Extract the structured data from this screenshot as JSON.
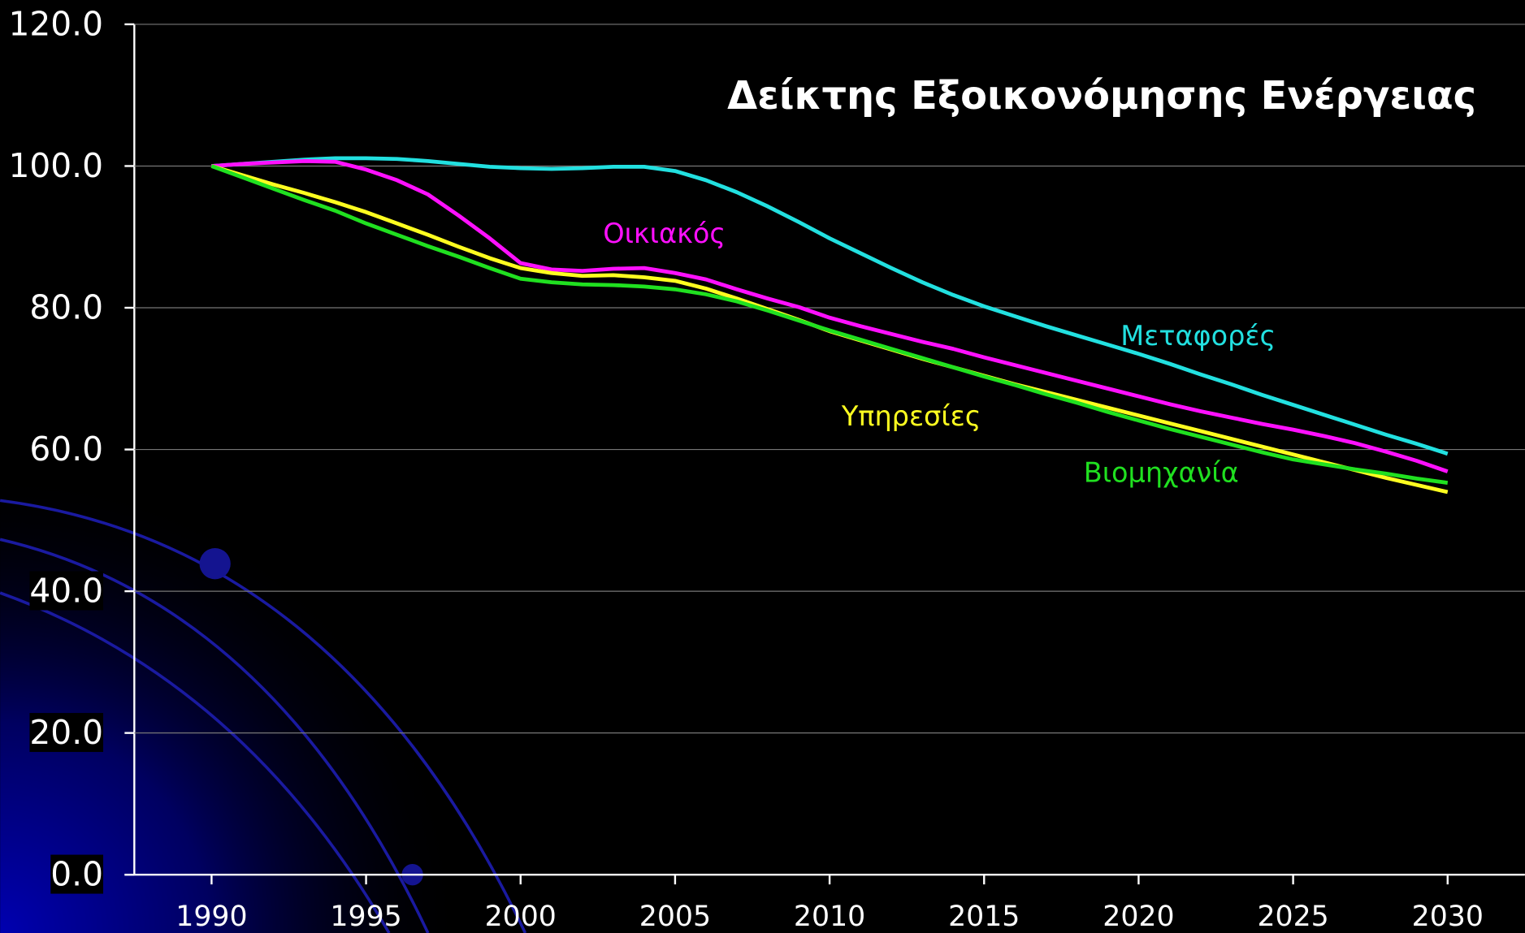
{
  "chart_data": {
    "type": "line",
    "title": "Δείκτης Εξοικονόμησης Ενέργειας",
    "x": [
      1990,
      1991,
      1992,
      1993,
      1994,
      1995,
      1996,
      1997,
      1998,
      1999,
      2000,
      2001,
      2002,
      2003,
      2004,
      2005,
      2006,
      2007,
      2008,
      2009,
      2010,
      2011,
      2012,
      2013,
      2014,
      2015,
      2016,
      2017,
      2018,
      2019,
      2020,
      2021,
      2022,
      2023,
      2024,
      2025,
      2026,
      2027,
      2028,
      2029,
      2030
    ],
    "xlim": [
      1987.5,
      2032.5
    ],
    "xticks": [
      1990,
      1995,
      2000,
      2005,
      2010,
      2015,
      2020,
      2025,
      2030
    ],
    "ylim": [
      0,
      120
    ],
    "yticks": [
      {
        "value": 0,
        "label": "0.0"
      },
      {
        "value": 20,
        "label": "20.0"
      },
      {
        "value": 40,
        "label": "40.0"
      },
      {
        "value": 60,
        "label": "60.0"
      },
      {
        "value": 80,
        "label": "80.0"
      },
      {
        "value": 100,
        "label": "100.0"
      },
      {
        "value": 120,
        "label": "120.0"
      }
    ],
    "grid": true,
    "series": [
      {
        "name": "Μεταφορές",
        "color": "#22e0e0",
        "values": [
          100,
          100.3,
          100.6,
          100.9,
          101.1,
          101.1,
          101.0,
          100.7,
          100.3,
          99.9,
          99.7,
          99.6,
          99.7,
          99.9,
          99.9,
          99.3,
          98.0,
          96.3,
          94.3,
          92.1,
          89.8,
          87.7,
          85.6,
          83.6,
          81.8,
          80.2,
          78.8,
          77.4,
          76.1,
          74.8,
          73.5,
          72.1,
          70.6,
          69.2,
          67.7,
          66.3,
          64.9,
          63.5,
          62.1,
          60.8,
          59.4
        ]
      },
      {
        "name": "Οικιακός",
        "color": "#ff10ff",
        "values": [
          100,
          100.3,
          100.5,
          100.7,
          100.6,
          99.5,
          98.0,
          96.0,
          93.0,
          89.8,
          86.3,
          85.4,
          85.2,
          85.5,
          85.6,
          84.9,
          84.0,
          82.6,
          81.3,
          80.1,
          78.6,
          77.4,
          76.3,
          75.2,
          74.2,
          73.0,
          71.9,
          70.8,
          69.7,
          68.6,
          67.5,
          66.4,
          65.4,
          64.5,
          63.6,
          62.8,
          61.9,
          60.9,
          59.7,
          58.4,
          56.9
        ]
      },
      {
        "name": "Υπηρεσίες",
        "color": "#ffff20",
        "values": [
          100,
          98.7,
          97.4,
          96.2,
          94.9,
          93.5,
          91.9,
          90.3,
          88.6,
          87.0,
          85.6,
          84.9,
          84.5,
          84.6,
          84.3,
          83.8,
          82.7,
          81.3,
          79.8,
          78.3,
          76.7,
          75.4,
          74.1,
          72.8,
          71.6,
          70.4,
          69.2,
          68.1,
          67.0,
          65.9,
          64.8,
          63.7,
          62.6,
          61.5,
          60.4,
          59.3,
          58.2,
          57.1,
          56.0,
          55.0,
          54.0
        ]
      },
      {
        "name": "Βιομηχανία",
        "color": "#20e020",
        "values": [
          100,
          98.4,
          96.8,
          95.2,
          93.7,
          91.9,
          90.3,
          88.7,
          87.2,
          85.6,
          84.1,
          83.6,
          83.3,
          83.2,
          83.0,
          82.6,
          81.9,
          80.9,
          79.6,
          78.2,
          76.8,
          75.5,
          74.2,
          72.9,
          71.6,
          70.3,
          69.1,
          67.8,
          66.6,
          65.3,
          64.1,
          62.9,
          61.8,
          60.7,
          59.6,
          58.6,
          57.9,
          57.2,
          56.6,
          55.9,
          55.3
        ]
      }
    ]
  }
}
